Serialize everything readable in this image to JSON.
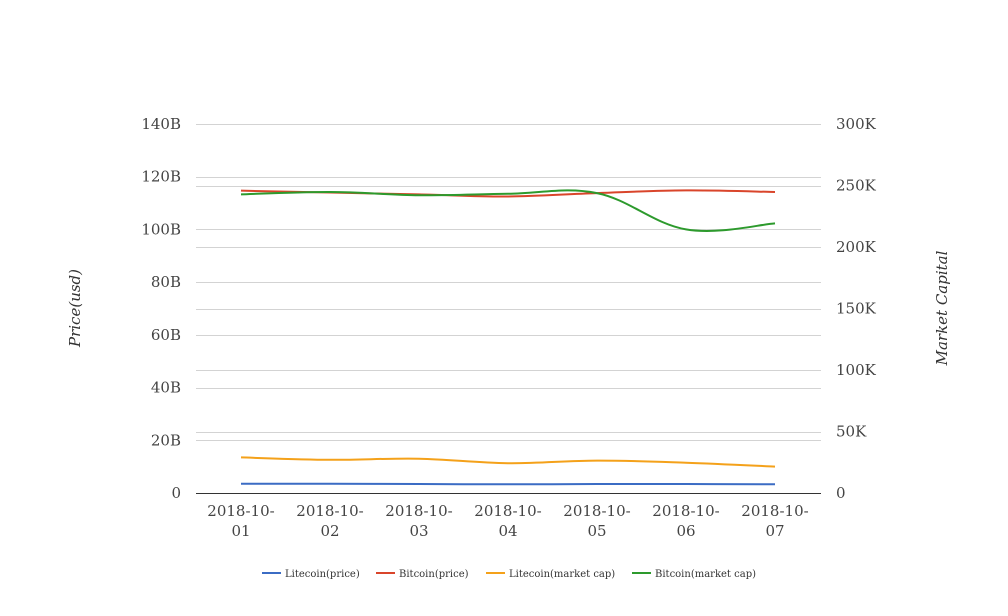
{
  "chart_data": {
    "type": "line",
    "categories": [
      "2018-10-01",
      "2018-10-02",
      "2018-10-03",
      "2018-10-04",
      "2018-10-05",
      "2018-10-06",
      "2018-10-07"
    ],
    "category_label_lines": [
      [
        "2018-10-",
        "01"
      ],
      [
        "2018-10-",
        "02"
      ],
      [
        "2018-10-",
        "03"
      ],
      [
        "2018-10-",
        "04"
      ],
      [
        "2018-10-",
        "05"
      ],
      [
        "2018-10-",
        "06"
      ],
      [
        "2018-10-",
        "07"
      ]
    ],
    "y_left": {
      "label": "Price(usd)",
      "ticks": [
        "0",
        "20B",
        "40B",
        "60B",
        "80B",
        "100B",
        "120B",
        "140B"
      ],
      "tick_values": [
        0,
        20,
        40,
        60,
        80,
        100,
        120,
        140
      ],
      "ylim": [
        0,
        140
      ],
      "unit_note": "billions"
    },
    "y_right": {
      "label": "Market Capital",
      "ticks": [
        "0",
        "50K",
        "100K",
        "150K",
        "200K",
        "250K",
        "300K"
      ],
      "tick_values": [
        0,
        50,
        100,
        150,
        200,
        250,
        300
      ],
      "ylim": [
        0,
        300
      ],
      "unit_note": "thousands"
    },
    "grid": true,
    "legend_position": "bottom",
    "series": [
      {
        "name": "Litecoin(price)",
        "axis": "left",
        "color": "#3b6cc4",
        "values": [
          3.5,
          3.5,
          3.4,
          3.3,
          3.4,
          3.4,
          3.3
        ]
      },
      {
        "name": "Bitcoin(price)",
        "axis": "left",
        "color": "#d9452b",
        "values": [
          114.7,
          114.0,
          113.3,
          112.5,
          113.8,
          114.8,
          114.2
        ]
      },
      {
        "name": "Litecoin(market cap)",
        "axis": "left",
        "color": "#f4a11a",
        "values": [
          13.5,
          12.6,
          13.0,
          11.3,
          12.3,
          11.5,
          10.0
        ]
      },
      {
        "name": "Bitcoin(market cap)",
        "axis": "left",
        "color": "#2d9a2d",
        "values": [
          113.3,
          114.2,
          113.0,
          113.5,
          113.8,
          100.0,
          102.3
        ]
      }
    ]
  }
}
